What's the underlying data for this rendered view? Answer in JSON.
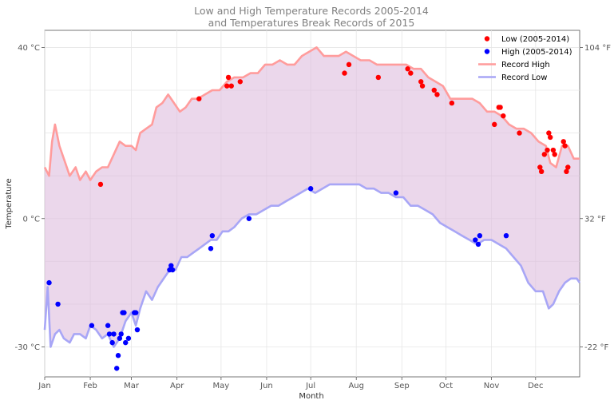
{
  "chart_data": {
    "type": "line",
    "title": "Low and High Temperature Records 2005-2014\nand Temperatures Break Records of 2015",
    "xlabel": "Month",
    "ylabel": "Temperature",
    "x_ticks": [
      "Jan",
      "Feb",
      "Mar",
      "Apr",
      "May",
      "Jun",
      "Jul",
      "Aug",
      "Sep",
      "Oct",
      "Nov",
      "Dec"
    ],
    "x_tick_days": [
      1,
      32,
      60,
      91,
      121,
      152,
      182,
      213,
      244,
      274,
      305,
      335
    ],
    "xlim": [
      1,
      365
    ],
    "ylim": [
      -37,
      44
    ],
    "y_ticks": [
      {
        "value": -30,
        "label": "-30 °C"
      },
      {
        "value": 0,
        "label": "0 °C"
      },
      {
        "value": 40,
        "label": "40 °C"
      }
    ],
    "y2_ticks": [
      {
        "value": -30,
        "label": "-22 °F"
      },
      {
        "value": 0,
        "label": "32 °F"
      },
      {
        "value": 40,
        "label": "104 °F"
      }
    ],
    "grid": true,
    "legend_position": "top-right",
    "fill_color": "#ddbdde",
    "series": [
      {
        "name": "Record High",
        "kind": "line",
        "color": "#ff9c9c",
        "points": [
          [
            1,
            12
          ],
          [
            4,
            10
          ],
          [
            6,
            18
          ],
          [
            8,
            22
          ],
          [
            11,
            17
          ],
          [
            15,
            13
          ],
          [
            18,
            10
          ],
          [
            22,
            12
          ],
          [
            25,
            9
          ],
          [
            29,
            11
          ],
          [
            32,
            9
          ],
          [
            36,
            11
          ],
          [
            40,
            12
          ],
          [
            44,
            12
          ],
          [
            48,
            15
          ],
          [
            52,
            18
          ],
          [
            56,
            17
          ],
          [
            60,
            17
          ],
          [
            63,
            16
          ],
          [
            66,
            20
          ],
          [
            70,
            21
          ],
          [
            74,
            22
          ],
          [
            77,
            26
          ],
          [
            81,
            27
          ],
          [
            85,
            29
          ],
          [
            89,
            27
          ],
          [
            93,
            25
          ],
          [
            97,
            26
          ],
          [
            101,
            28
          ],
          [
            105,
            28
          ],
          [
            110,
            29
          ],
          [
            115,
            30
          ],
          [
            120,
            30
          ],
          [
            125,
            32
          ],
          [
            130,
            33
          ],
          [
            136,
            33
          ],
          [
            141,
            34
          ],
          [
            146,
            34
          ],
          [
            151,
            36
          ],
          [
            156,
            36
          ],
          [
            161,
            37
          ],
          [
            166,
            36
          ],
          [
            171,
            36
          ],
          [
            176,
            38
          ],
          [
            181,
            39
          ],
          [
            186,
            40
          ],
          [
            191,
            38
          ],
          [
            196,
            38
          ],
          [
            201,
            38
          ],
          [
            206,
            39
          ],
          [
            211,
            38
          ],
          [
            216,
            37
          ],
          [
            222,
            37
          ],
          [
            227,
            36
          ],
          [
            232,
            36
          ],
          [
            237,
            36
          ],
          [
            242,
            36
          ],
          [
            247,
            36
          ],
          [
            252,
            35
          ],
          [
            257,
            35
          ],
          [
            262,
            33
          ],
          [
            267,
            32
          ],
          [
            272,
            31
          ],
          [
            277,
            28
          ],
          [
            282,
            28
          ],
          [
            287,
            28
          ],
          [
            292,
            28
          ],
          [
            297,
            27
          ],
          [
            302,
            25
          ],
          [
            307,
            25
          ],
          [
            312,
            24
          ],
          [
            317,
            22
          ],
          [
            322,
            21
          ],
          [
            327,
            21
          ],
          [
            332,
            20
          ],
          [
            337,
            18
          ],
          [
            342,
            17
          ],
          [
            345,
            13
          ],
          [
            349,
            12
          ],
          [
            353,
            17
          ],
          [
            357,
            17
          ],
          [
            361,
            14
          ],
          [
            365,
            14
          ]
        ]
      },
      {
        "name": "Record Low",
        "kind": "line",
        "color": "#a8a6f6",
        "points": [
          [
            1,
            -26
          ],
          [
            3,
            -16
          ],
          [
            5,
            -30
          ],
          [
            8,
            -27
          ],
          [
            11,
            -26
          ],
          [
            14,
            -28
          ],
          [
            18,
            -29
          ],
          [
            21,
            -27
          ],
          [
            25,
            -27
          ],
          [
            29,
            -28
          ],
          [
            32,
            -25
          ],
          [
            36,
            -26
          ],
          [
            40,
            -28
          ],
          [
            44,
            -27
          ],
          [
            48,
            -30
          ],
          [
            52,
            -28
          ],
          [
            56,
            -24
          ],
          [
            60,
            -22
          ],
          [
            63,
            -25
          ],
          [
            66,
            -21
          ],
          [
            70,
            -17
          ],
          [
            74,
            -19
          ],
          [
            78,
            -16
          ],
          [
            82,
            -14
          ],
          [
            86,
            -12
          ],
          [
            90,
            -12
          ],
          [
            94,
            -9
          ],
          [
            98,
            -9
          ],
          [
            102,
            -8
          ],
          [
            106,
            -7
          ],
          [
            110,
            -6
          ],
          [
            114,
            -5
          ],
          [
            118,
            -5
          ],
          [
            122,
            -3
          ],
          [
            126,
            -3
          ],
          [
            130,
            -2
          ],
          [
            135,
            0
          ],
          [
            140,
            1
          ],
          [
            145,
            1
          ],
          [
            150,
            2
          ],
          [
            155,
            3
          ],
          [
            160,
            3
          ],
          [
            165,
            4
          ],
          [
            170,
            5
          ],
          [
            175,
            6
          ],
          [
            180,
            7
          ],
          [
            185,
            6
          ],
          [
            190,
            7
          ],
          [
            195,
            8
          ],
          [
            200,
            8
          ],
          [
            205,
            8
          ],
          [
            210,
            8
          ],
          [
            215,
            8
          ],
          [
            220,
            7
          ],
          [
            225,
            7
          ],
          [
            230,
            6
          ],
          [
            235,
            6
          ],
          [
            240,
            5
          ],
          [
            245,
            5
          ],
          [
            250,
            3
          ],
          [
            255,
            3
          ],
          [
            260,
            2
          ],
          [
            265,
            1
          ],
          [
            270,
            -1
          ],
          [
            275,
            -2
          ],
          [
            280,
            -3
          ],
          [
            285,
            -4
          ],
          [
            290,
            -5
          ],
          [
            295,
            -6
          ],
          [
            300,
            -5
          ],
          [
            305,
            -5
          ],
          [
            310,
            -6
          ],
          [
            315,
            -7
          ],
          [
            320,
            -9
          ],
          [
            325,
            -11
          ],
          [
            330,
            -15
          ],
          [
            335,
            -17
          ],
          [
            340,
            -17
          ],
          [
            344,
            -21
          ],
          [
            347,
            -20
          ],
          [
            351,
            -17
          ],
          [
            355,
            -15
          ],
          [
            359,
            -14
          ],
          [
            363,
            -14
          ],
          [
            365,
            -15
          ]
        ]
      },
      {
        "name": "Low (2005-2014)",
        "kind": "scatter",
        "color": "#ff0000",
        "points": [
          [
            39,
            8
          ],
          [
            106,
            28
          ],
          [
            125,
            31
          ],
          [
            126,
            33
          ],
          [
            128,
            31
          ],
          [
            134,
            32
          ],
          [
            205,
            34
          ],
          [
            208,
            36
          ],
          [
            228,
            33
          ],
          [
            248,
            35
          ],
          [
            250,
            34
          ],
          [
            257,
            32
          ],
          [
            258,
            31
          ],
          [
            266,
            30
          ],
          [
            268,
            29
          ],
          [
            278,
            27
          ],
          [
            307,
            22
          ],
          [
            310,
            26
          ],
          [
            311,
            26
          ],
          [
            313,
            24
          ],
          [
            324,
            20
          ],
          [
            338,
            12
          ],
          [
            339,
            11
          ],
          [
            341,
            15
          ],
          [
            343,
            16
          ],
          [
            344,
            20
          ],
          [
            345,
            19
          ],
          [
            347,
            16
          ],
          [
            348,
            15
          ],
          [
            354,
            18
          ],
          [
            355,
            17
          ],
          [
            356,
            11
          ],
          [
            357,
            12
          ]
        ]
      },
      {
        "name": "High (2005-2014)",
        "kind": "scatter",
        "color": "#0000ff",
        "points": [
          [
            4,
            -15
          ],
          [
            10,
            -20
          ],
          [
            33,
            -25
          ],
          [
            44,
            -25
          ],
          [
            45,
            -27
          ],
          [
            47,
            -29
          ],
          [
            48,
            -27
          ],
          [
            50,
            -35
          ],
          [
            51,
            -32
          ],
          [
            52,
            -28
          ],
          [
            53,
            -27
          ],
          [
            54,
            -22
          ],
          [
            55,
            -22
          ],
          [
            56,
            -29
          ],
          [
            58,
            -28
          ],
          [
            62,
            -22
          ],
          [
            63,
            -22
          ],
          [
            64,
            -26
          ],
          [
            86,
            -12
          ],
          [
            87,
            -11
          ],
          [
            88,
            -12
          ],
          [
            114,
            -7
          ],
          [
            115,
            -4
          ],
          [
            140,
            0
          ],
          [
            182,
            7
          ],
          [
            240,
            6
          ],
          [
            294,
            -5
          ],
          [
            296,
            -6
          ],
          [
            297,
            -4
          ],
          [
            315,
            -4
          ]
        ]
      }
    ]
  }
}
